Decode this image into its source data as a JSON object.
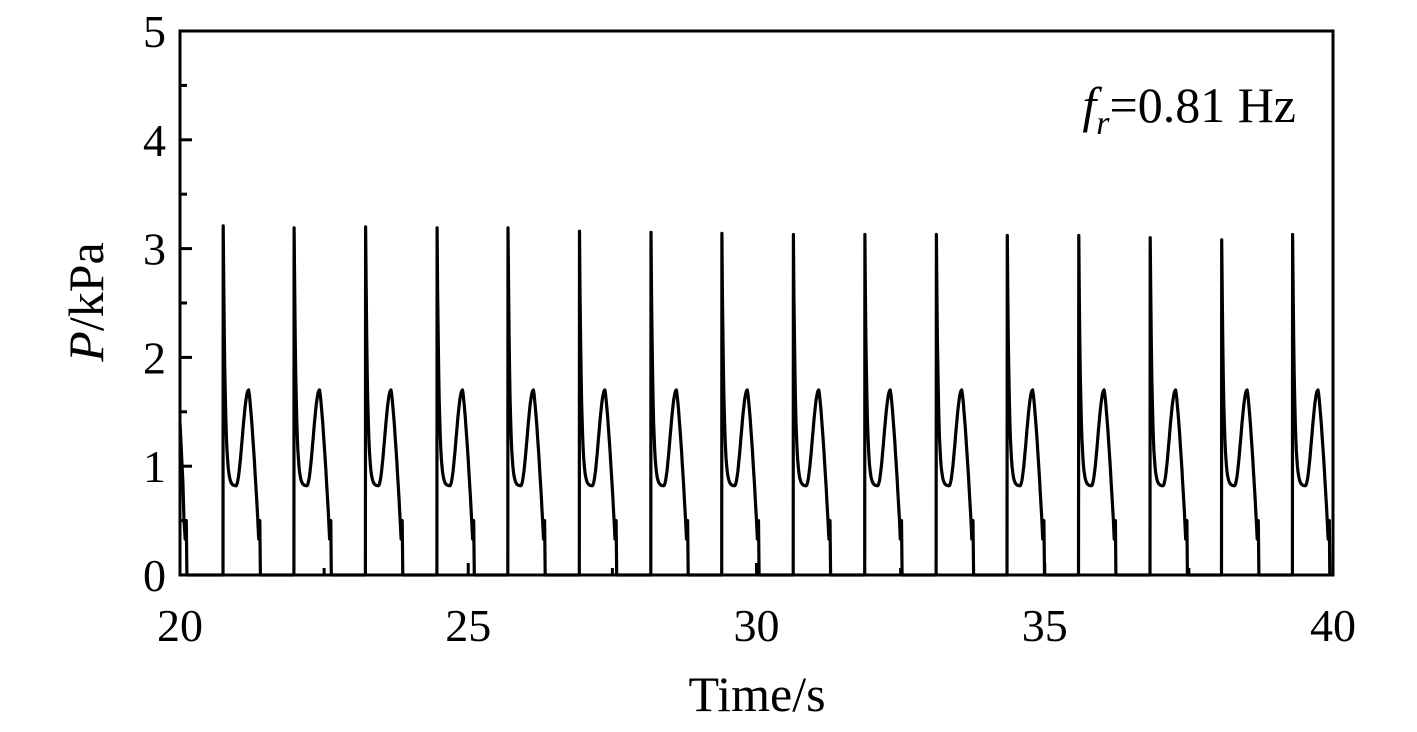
{
  "chart_data": {
    "type": "line",
    "xlabel": "Time/s",
    "ylabel": {
      "symbol": "P",
      "unit": "/kPa"
    },
    "xlim": [
      20,
      40
    ],
    "ylim": [
      0,
      5
    ],
    "xticks": [
      20,
      25,
      30,
      35,
      40
    ],
    "yticks": [
      0,
      1,
      2,
      3,
      4,
      5
    ],
    "xtick_labels": [
      "20",
      "25",
      "30",
      "35",
      "40"
    ],
    "ytick_labels": [
      "0",
      "1",
      "2",
      "3",
      "4",
      "5"
    ],
    "grid": false,
    "annotation": {
      "symbol": "f",
      "subscript": "r",
      "text": "=0.81 Hz"
    },
    "series": [
      {
        "color": "#000000",
        "pulse_times": [
          20.75,
          21.98,
          23.22,
          24.46,
          25.69,
          26.93,
          28.17,
          29.4,
          30.64,
          31.88,
          33.12,
          34.35,
          35.59,
          36.83,
          38.07,
          39.3
        ],
        "pulse_peaks": [
          3.21,
          3.19,
          3.2,
          3.19,
          3.19,
          3.16,
          3.15,
          3.14,
          3.13,
          3.13,
          3.13,
          3.12,
          3.12,
          3.1,
          3.08,
          3.13
        ],
        "dip_value": 0.82,
        "secondary_peak": 1.7,
        "cutoff_values": [
          0.5,
          0.33,
          0.0
        ]
      }
    ]
  }
}
